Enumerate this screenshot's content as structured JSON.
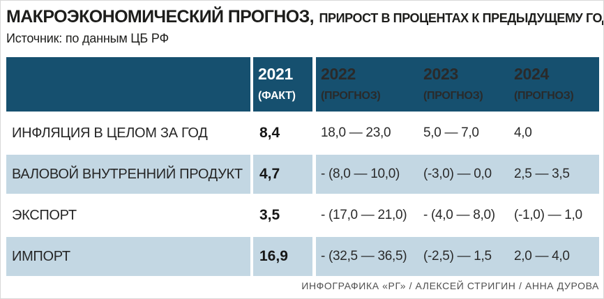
{
  "chart_data": {
    "type": "table",
    "title": "МАКРОЭКОНОМИЧЕСКИЙ ПРОГНОЗ,",
    "subtitle": "ПРИРОСТ В ПРОЦЕНТАХ К ПРЕДЫДУЩЕМУ ГОДУ",
    "source": "Источник: по данным ЦБ РФ",
    "col_headers": [
      {
        "year": "2021",
        "note": "(ФАКТ)"
      },
      {
        "year": "2022",
        "note": "(ПРОГНОЗ)"
      },
      {
        "year": "2023",
        "note": "(ПРОГНОЗ)"
      },
      {
        "year": "2024",
        "note": "(ПРОГНОЗ)"
      }
    ],
    "rows": [
      {
        "label": "ИНФЛЯЦИЯ В ЦЕЛОМ ЗА ГОД",
        "values": [
          "8,4",
          "18,0 — 23,0",
          "5,0 — 7,0",
          "4,0"
        ]
      },
      {
        "label": "ВАЛОВОЙ ВНУТРЕННИЙ ПРОДУКТ",
        "values": [
          "4,7",
          "- (8,0 — 10,0)",
          "(-3,0) — 0,0",
          "2,5 — 3,5"
        ]
      },
      {
        "label": "ЭКСПОРТ",
        "values": [
          "3,5",
          "- (17,0 — 21,0)",
          "- (4,0 — 8,0)",
          "(-1,0) — 1,0"
        ]
      },
      {
        "label": "ИМПОРТ",
        "values": [
          "16,9",
          "- (32,5 — 36,5)",
          "(-2,5) — 1,5",
          "2,0 — 4,0"
        ]
      }
    ],
    "footer_credit": "ИНФОГРАФИКА «РГ» / АЛЕКСЕЙ СТРИГИН / АННА ДУРОВА",
    "layout": {
      "legend": "none",
      "grid": "off",
      "shaded_row_indexes": [
        1,
        3
      ]
    }
  },
  "colors": {
    "header_bg": "#16506f",
    "shade_row_bg": "#c3d7e3",
    "title_color": "#1d1d1b",
    "footer_color": "#4f4f4f"
  }
}
